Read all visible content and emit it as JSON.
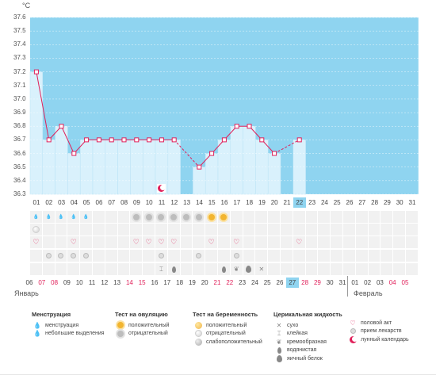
{
  "chart": {
    "unit": "°C",
    "y_ticks": [
      "37.6",
      "37.5",
      "37.4",
      "37.3",
      "37.2",
      "37.1",
      "37.0",
      "36.9",
      "36.8",
      "36.7",
      "36.6",
      "36.5",
      "36.4",
      "36.3"
    ],
    "day_labels": [
      "01",
      "02",
      "03",
      "04",
      "05",
      "06",
      "07",
      "08",
      "09",
      "10",
      "11",
      "12",
      "13",
      "14",
      "15",
      "16",
      "17",
      "18",
      "19",
      "20",
      "21",
      "22",
      "23",
      "24",
      "25",
      "26",
      "27",
      "28",
      "29",
      "30",
      "31"
    ],
    "highlight_day": "22",
    "colors": {
      "background": "#8fd4f0",
      "bar": "#d9f1fc",
      "line": "#e0205a",
      "grid": "#ffffff"
    }
  },
  "chart_data": {
    "type": "line",
    "x": [
      1,
      2,
      3,
      4,
      5,
      6,
      7,
      8,
      9,
      10,
      11,
      12,
      14,
      15,
      16,
      17,
      18,
      19,
      20,
      22
    ],
    "y": [
      37.2,
      36.7,
      36.8,
      36.6,
      36.7,
      36.7,
      36.7,
      36.7,
      36.7,
      36.7,
      36.7,
      36.7,
      36.5,
      36.6,
      36.7,
      36.8,
      36.8,
      36.7,
      36.6,
      36.7
    ],
    "dashed_segments": [
      [
        12,
        14
      ],
      [
        20,
        22
      ]
    ],
    "ylabel": "°C",
    "ylim": [
      36.3,
      37.6
    ],
    "grid": true
  },
  "symbols": {
    "menstruation": [
      1,
      2,
      3,
      4,
      5
    ],
    "ovulation_negative": [
      9,
      10,
      11,
      12,
      13,
      14
    ],
    "ovulation_positive": [
      15,
      16
    ],
    "lunar": [
      11
    ],
    "pregnancy_negative": [
      1
    ],
    "heart": [
      1,
      4,
      9,
      10,
      11,
      12,
      15,
      17,
      22
    ],
    "pill": [
      2,
      3,
      4,
      5,
      11,
      14,
      17
    ],
    "cervical_row": [
      {
        "day": 11,
        "type": "sticky"
      },
      {
        "day": 12,
        "type": "egg-small"
      },
      {
        "day": 16,
        "type": "egg-small"
      },
      {
        "day": 17,
        "type": "creamy"
      },
      {
        "day": 18,
        "type": "egg-white"
      },
      {
        "day": 19,
        "type": "dry"
      }
    ]
  },
  "calendar": {
    "dates": [
      {
        "t": "06",
        "red": false
      },
      {
        "t": "07",
        "red": true
      },
      {
        "t": "08",
        "red": true
      },
      {
        "t": "09",
        "red": false
      },
      {
        "t": "10",
        "red": false
      },
      {
        "t": "11",
        "red": false
      },
      {
        "t": "12",
        "red": false
      },
      {
        "t": "13",
        "red": false
      },
      {
        "t": "14",
        "red": true
      },
      {
        "t": "15",
        "red": true
      },
      {
        "t": "16",
        "red": false
      },
      {
        "t": "17",
        "red": false
      },
      {
        "t": "18",
        "red": false
      },
      {
        "t": "19",
        "red": false
      },
      {
        "t": "20",
        "red": false
      },
      {
        "t": "21",
        "red": true
      },
      {
        "t": "22",
        "red": true
      },
      {
        "t": "23",
        "red": false
      },
      {
        "t": "24",
        "red": false
      },
      {
        "t": "25",
        "red": false
      },
      {
        "t": "26",
        "red": false
      },
      {
        "t": "27",
        "red": false
      },
      {
        "t": "28",
        "red": true
      },
      {
        "t": "29",
        "red": true
      },
      {
        "t": "30",
        "red": false
      },
      {
        "t": "31",
        "red": false
      },
      {
        "t": "01",
        "red": false
      },
      {
        "t": "02",
        "red": false
      },
      {
        "t": "03",
        "red": false
      },
      {
        "t": "04",
        "red": true
      },
      {
        "t": "05",
        "red": true
      }
    ],
    "month_start": "Январь",
    "month_end": "Февраль"
  },
  "legend": {
    "menstruation": {
      "title": "Менструация",
      "items": [
        "менструация",
        "небольшие выделения"
      ]
    },
    "ovulation": {
      "title": "Тест на овуляцию",
      "items": [
        "положительный",
        "отрицательный"
      ]
    },
    "pregnancy": {
      "title": "Тест на беременность",
      "items": [
        "положительный",
        "отрицательный",
        "слабоположительный"
      ]
    },
    "cervical": {
      "title": "Церикальная жидкость",
      "items": [
        "сухо",
        "клейкая",
        "кремообразная",
        "водянистая",
        "яичный белок"
      ]
    },
    "other": {
      "items": [
        "половой акт",
        "прием лекарств",
        "лунный календарь"
      ]
    }
  }
}
